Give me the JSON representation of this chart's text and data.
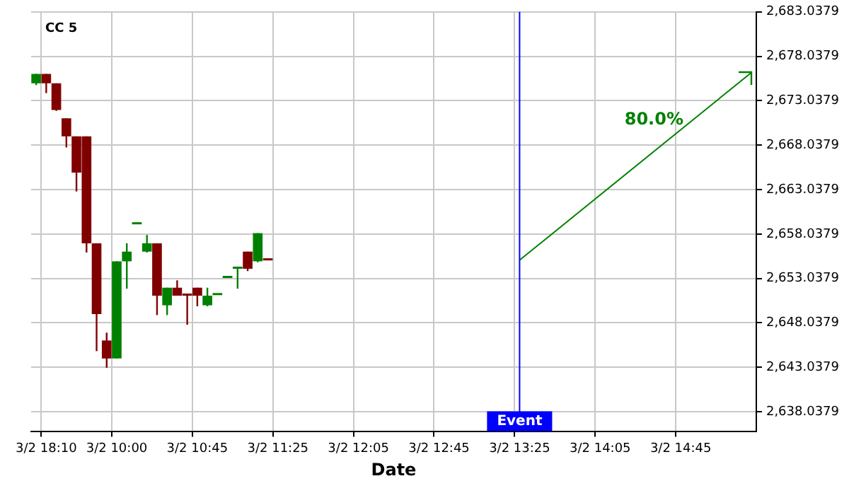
{
  "chart_data": {
    "type": "candlestick",
    "title": "CC 5",
    "xlabel": "Date",
    "categories": [
      null,
      "3/2 18:10",
      null,
      null,
      null,
      null,
      null,
      null,
      "3/2 10:00",
      null,
      null,
      null,
      null,
      null,
      null,
      null,
      "3/2 10:45",
      null,
      null,
      null,
      null,
      null,
      null,
      null,
      "3/2 11:25",
      null,
      null,
      null,
      null,
      null,
      null,
      null,
      "3/2 12:05",
      null,
      null,
      null,
      null,
      null,
      null,
      null,
      "3/2 12:45",
      null,
      null,
      null,
      null,
      null,
      null,
      null,
      "3/2 13:25",
      null,
      null,
      null,
      null,
      null,
      null,
      null,
      "3/2 14:05",
      null,
      null,
      null,
      null,
      null,
      null,
      null,
      "3/2 14:45",
      null,
      null,
      null,
      null,
      null,
      null,
      null
    ],
    "ylim": [
      2635.85,
      2683.0379
    ],
    "yticks": [
      {
        "value": 2638.0379,
        "label": "2,638.0379"
      },
      {
        "value": 2643.0379,
        "label": "2,643.0379"
      },
      {
        "value": 2648.0379,
        "label": "2,648.0379"
      },
      {
        "value": 2653.0379,
        "label": "2,653.0379"
      },
      {
        "value": 2658.0379,
        "label": "2,658.0379"
      },
      {
        "value": 2663.0379,
        "label": "2,663.0379"
      },
      {
        "value": 2668.0379,
        "label": "2,668.0379"
      },
      {
        "value": 2673.0379,
        "label": "2,673.0379"
      },
      {
        "value": 2678.0379,
        "label": "2,678.0379"
      },
      {
        "value": 2683.0379,
        "label": "2,683.0379"
      }
    ],
    "grid": true,
    "legend": false,
    "series": [
      {
        "ohlc": [
          [
            2675.0,
            2676.06,
            2674.8,
            2676.06
          ],
          [
            2676.06,
            2676.06,
            2673.9,
            2675.0
          ],
          [
            2675.0,
            2675.0,
            2671.9,
            2672.0
          ],
          [
            2671.06,
            2671.06,
            2667.78,
            2669.03
          ],
          [
            2669.03,
            2669.03,
            2662.83,
            2664.96
          ],
          [
            2669.03,
            2669.03,
            2655.96,
            2657.0
          ],
          [
            2657.0,
            2657.0,
            2644.86,
            2649.03
          ],
          [
            2646.06,
            2646.94,
            2642.99,
            2644.03
          ],
          [
            2644.03,
            2654.97,
            2644.03,
            2654.97
          ],
          [
            2654.97,
            2657.0,
            2651.89,
            2656.06
          ],
          [
            2659.13,
            2659.13,
            2659.13,
            2659.13
          ],
          [
            2656.06,
            2657.93,
            2655.96,
            2657.0
          ],
          [
            2657.0,
            2657.0,
            2648.92,
            2651.1
          ],
          [
            2650.02,
            2652.0,
            2648.92,
            2652.0
          ],
          [
            2652.0,
            2652.83,
            2651.1,
            2651.1
          ],
          [
            2651.2,
            2651.2,
            2647.83,
            2651.1
          ],
          [
            2652.0,
            2652.0,
            2649.91,
            2651.1
          ],
          [
            2650.02,
            2652.0,
            2649.91,
            2651.1
          ],
          [
            2651.16,
            2651.16,
            2651.16,
            2651.16
          ],
          [
            2653.09,
            2653.09,
            2653.09,
            2653.09
          ],
          [
            2654.13,
            2654.13,
            2651.89,
            2654.13
          ],
          [
            2656.06,
            2656.06,
            2653.87,
            2654.13
          ],
          [
            2654.97,
            2658.14,
            2654.86,
            2658.14
          ],
          [
            2655.07,
            2655.07,
            2655.07,
            2655.07
          ],
          null,
          null,
          null,
          null,
          null,
          null,
          null,
          null,
          null,
          null,
          null,
          null,
          null,
          null,
          null,
          null,
          null,
          null,
          null,
          null,
          null,
          null,
          null,
          null,
          null,
          null,
          null,
          null,
          null,
          null,
          null,
          null,
          null,
          null,
          null,
          null,
          null,
          null,
          null,
          null,
          null,
          null,
          null,
          null,
          null,
          null,
          null,
          null
        ],
        "colors": [
          "#008000",
          "#800000",
          "#800000",
          "#800000",
          "#800000",
          "#800000",
          "#800000",
          "#800000",
          "#008000",
          "#008000",
          "#008000",
          "#008000",
          "#800000",
          "#008000",
          "#800000",
          "#800000",
          "#800000",
          "#008000",
          "#008000",
          "#008000",
          "#008000",
          "#800000",
          "#008000",
          "#800000",
          null,
          null,
          null,
          null,
          null,
          null,
          null,
          null,
          null,
          null,
          null,
          null,
          null,
          null,
          null,
          null,
          null,
          null,
          null,
          null,
          null,
          null,
          null,
          null,
          null,
          null,
          null,
          null,
          null,
          null,
          null,
          null,
          null,
          null,
          null,
          null,
          null,
          null,
          null,
          null,
          null,
          null,
          null,
          null,
          null,
          null,
          null,
          null
        ]
      },
      {
        "type": "line",
        "color": "#008000",
        "values": [
          null,
          null,
          null,
          null,
          null,
          null,
          null,
          null,
          null,
          null,
          null,
          null,
          null,
          null,
          null,
          null,
          null,
          null,
          null,
          null,
          null,
          null,
          null,
          null,
          null,
          null,
          null,
          null,
          null,
          null,
          null,
          null,
          null,
          null,
          null,
          null,
          null,
          null,
          null,
          null,
          null,
          null,
          null,
          null,
          null,
          null,
          null,
          null,
          2655.1,
          null,
          null,
          null,
          null,
          null,
          null,
          null,
          null,
          null,
          null,
          null,
          null,
          null,
          null,
          null,
          null,
          null,
          null,
          null,
          null,
          null,
          null,
          2676.2
        ]
      }
    ],
    "ref_lines": [
      {
        "axis": "x",
        "value": "3/2 13:25",
        "label": "Event",
        "color": "#0000ff"
      }
    ],
    "annotations": [
      "80.0%"
    ]
  }
}
